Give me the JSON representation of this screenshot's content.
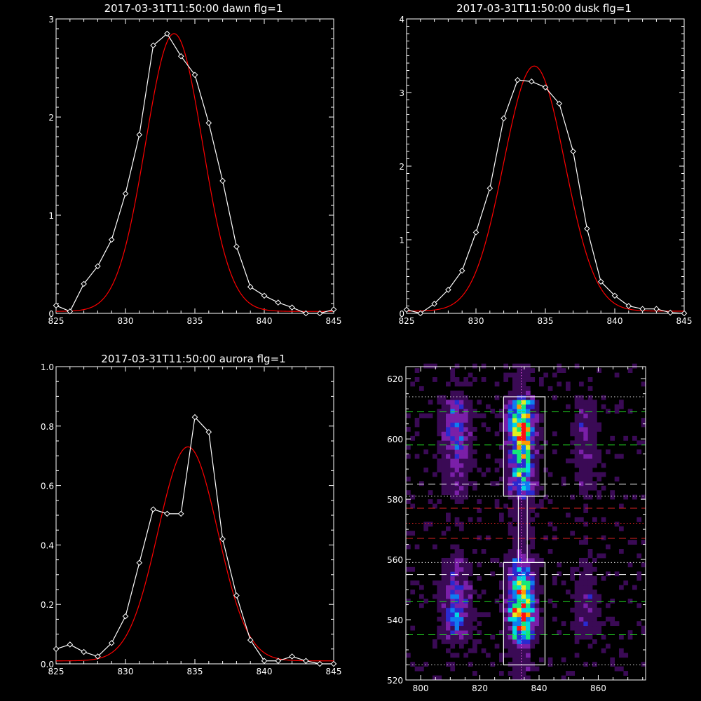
{
  "chart_data": [
    {
      "type": "line",
      "title": "2017-03-31T11:50:00 dawn flg=1",
      "xlim": [
        825,
        845
      ],
      "ylim": [
        0,
        3
      ],
      "xticks": [
        825,
        830,
        835,
        840,
        845
      ],
      "yticks": [
        0,
        1,
        2,
        3
      ],
      "xtick_labels": [
        "825",
        "830",
        "835",
        "840",
        "845"
      ],
      "ytick_labels": [
        "0",
        "1",
        "2",
        "3"
      ],
      "series": [
        {
          "role": "data",
          "color": "#ffffff",
          "marker": "diamond",
          "x": [
            825,
            826,
            827,
            828,
            829,
            830,
            831,
            832,
            833,
            834,
            835,
            836,
            837,
            838,
            839,
            840,
            841,
            842,
            843,
            844,
            845
          ],
          "y": [
            0.08,
            0.02,
            0.3,
            0.48,
            0.75,
            1.22,
            1.82,
            2.73,
            2.85,
            2.62,
            2.43,
            1.94,
            1.35,
            0.68,
            0.27,
            0.18,
            0.11,
            0.06,
            0.0,
            0.0,
            0.04
          ]
        },
        {
          "role": "fit",
          "color": "#ff0000",
          "gauss": {
            "amp": 2.83,
            "center": 833.5,
            "sigma": 2.05,
            "base": 0.02
          }
        }
      ]
    },
    {
      "type": "line",
      "title": "2017-03-31T11:50:00 dusk flg=1",
      "xlim": [
        825,
        845
      ],
      "ylim": [
        0,
        4
      ],
      "xticks": [
        825,
        830,
        835,
        840,
        845
      ],
      "yticks": [
        0,
        1,
        2,
        3,
        4
      ],
      "xtick_labels": [
        "825",
        "830",
        "835",
        "840",
        "845"
      ],
      "ytick_labels": [
        "0",
        "1",
        "2",
        "3",
        "4"
      ],
      "series": [
        {
          "role": "data",
          "color": "#ffffff",
          "marker": "diamond",
          "x": [
            825,
            826,
            827,
            828,
            829,
            830,
            831,
            832,
            833,
            834,
            835,
            836,
            837,
            838,
            839,
            840,
            841,
            842,
            843,
            844,
            845
          ],
          "y": [
            0.05,
            0.0,
            0.13,
            0.32,
            0.58,
            1.1,
            1.7,
            2.65,
            3.17,
            3.15,
            3.07,
            2.85,
            2.2,
            1.15,
            0.43,
            0.24,
            0.1,
            0.06,
            0.06,
            0.01,
            0.0
          ]
        },
        {
          "role": "fit",
          "color": "#ff0000",
          "gauss": {
            "amp": 3.33,
            "center": 834.2,
            "sigma": 2.2,
            "base": 0.03
          }
        }
      ]
    },
    {
      "type": "line",
      "title": "2017-03-31T11:50:00 aurora flg=1",
      "xlim": [
        825,
        845
      ],
      "ylim": [
        0,
        1
      ],
      "xticks": [
        825,
        830,
        835,
        840,
        845
      ],
      "yticks": [
        0,
        0.2,
        0.4,
        0.6,
        0.8,
        1.0
      ],
      "xtick_labels": [
        "825",
        "830",
        "835",
        "840",
        "845"
      ],
      "ytick_labels": [
        "0.0",
        "0.2",
        "0.4",
        "0.6",
        "0.8",
        "1.0"
      ],
      "series": [
        {
          "role": "data",
          "color": "#ffffff",
          "marker": "diamond",
          "x": [
            825,
            826,
            827,
            828,
            829,
            830,
            831,
            832,
            833,
            834,
            835,
            836,
            837,
            838,
            839,
            840,
            841,
            842,
            843,
            844,
            845
          ],
          "y": [
            0.05,
            0.065,
            0.04,
            0.025,
            0.07,
            0.16,
            0.34,
            0.52,
            0.505,
            0.505,
            0.83,
            0.78,
            0.42,
            0.23,
            0.08,
            0.01,
            0.01,
            0.025,
            0.01,
            0.0,
            0.0
          ]
        },
        {
          "role": "fit",
          "color": "#ff0000",
          "gauss": {
            "amp": 0.72,
            "center": 834.5,
            "sigma": 2.15,
            "base": 0.01
          }
        }
      ]
    },
    {
      "type": "heatmap",
      "xlim": [
        795,
        876
      ],
      "ylim": [
        520,
        624
      ],
      "xticks": [
        800,
        820,
        840,
        860
      ],
      "yticks": [
        520,
        540,
        560,
        580,
        600,
        620
      ],
      "xtick_labels": [
        "800",
        "820",
        "840",
        "860"
      ],
      "ytick_labels": [
        "520",
        "540",
        "560",
        "580",
        "600",
        "620"
      ],
      "colormap": [
        "#000000",
        "#3a0a55",
        "#7a1fa8",
        "#2a2ad0",
        "#0f7df0",
        "#00d8e0",
        "#14e87a",
        "#dff020",
        "#ff9a00",
        "#ff1010"
      ],
      "emission_columns": [
        {
          "center": 812,
          "width": 3.2,
          "peak": 0.42
        },
        {
          "center": 834,
          "width": 3.0,
          "peak": 1.0
        },
        {
          "center": 856,
          "width": 3.0,
          "peak": 0.22
        }
      ],
      "emission_bands": [
        {
          "from": 533,
          "to": 560,
          "peak_at": 543
        },
        {
          "from": 582,
          "to": 613,
          "peak_at": 603
        }
      ],
      "boxes": [
        {
          "x0": 828,
          "x1": 842,
          "y0": 525,
          "y1": 559
        },
        {
          "x0": 828,
          "x1": 842,
          "y0": 581,
          "y1": 614
        }
      ],
      "connector": {
        "x0": 833,
        "x1": 836,
        "y0": 559,
        "y1": 581
      },
      "center_line": 834,
      "hlines": [
        {
          "y": 525,
          "color": "#dddddd",
          "style": "dotted"
        },
        {
          "y": 535,
          "color": "#22dd22",
          "style": "dashed"
        },
        {
          "y": 546,
          "color": "#22dd22",
          "style": "dashed"
        },
        {
          "y": 555,
          "color": "#ffffff",
          "style": "dashed"
        },
        {
          "y": 559,
          "color": "#dddddd",
          "style": "dotted"
        },
        {
          "y": 567,
          "color": "#dd2222",
          "style": "dashed"
        },
        {
          "y": 572,
          "color": "#dd2222",
          "style": "dotted"
        },
        {
          "y": 577,
          "color": "#dd2222",
          "style": "dashed"
        },
        {
          "y": 581,
          "color": "#dddddd",
          "style": "dotted"
        },
        {
          "y": 585,
          "color": "#ffffff",
          "style": "dashed"
        },
        {
          "y": 598,
          "color": "#22dd22",
          "style": "dashed"
        },
        {
          "y": 609,
          "color": "#22dd22",
          "style": "dashed"
        },
        {
          "y": 614,
          "color": "#dddddd",
          "style": "dotted"
        }
      ]
    }
  ]
}
